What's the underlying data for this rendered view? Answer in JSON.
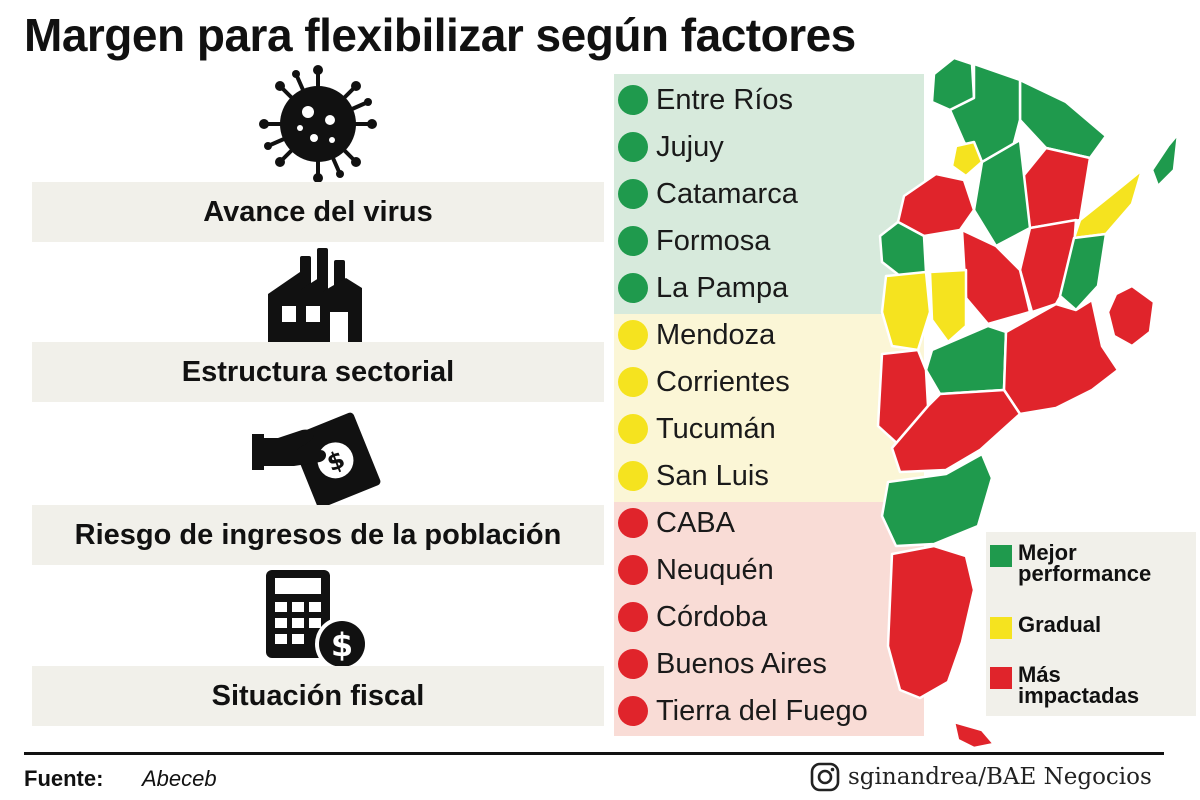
{
  "title": "Margen para flexibilizar según factores",
  "factors": [
    {
      "label": "Avance del virus",
      "icon": "virus-icon"
    },
    {
      "label": "Estructura sectorial",
      "icon": "factory-icon"
    },
    {
      "label": "Riesgo de ingresos de la población",
      "icon": "hand-money-icon"
    },
    {
      "label": "Situación fiscal",
      "icon": "calculator-dollar-icon"
    }
  ],
  "groups": [
    {
      "key": "green",
      "color": "#1f9a4d",
      "bg": "#d7eadc",
      "provinces": [
        "Entre Ríos",
        "Jujuy",
        "Catamarca",
        "Formosa",
        "La Pampa"
      ]
    },
    {
      "key": "yellow",
      "color": "#f5e31f",
      "bg": "#fbf6d6",
      "provinces": [
        "Mendoza",
        "Corrientes",
        "Tucumán",
        "San Luis"
      ]
    },
    {
      "key": "red",
      "color": "#e0242b",
      "bg": "#f9dcd6",
      "provinces": [
        "CABA",
        "Neuquén",
        "Córdoba",
        "Buenos Aires",
        "Tierra del Fuego"
      ]
    }
  ],
  "legend": [
    {
      "label": "Mejor performance",
      "color": "#1f9a4d"
    },
    {
      "label": "Gradual",
      "color": "#f5e31f"
    },
    {
      "label": "Más impactadas",
      "color": "#e0242b"
    }
  ],
  "source": {
    "label": "Fuente:",
    "value": "Abeceb"
  },
  "credit": {
    "text": "sginandrea/BAE Negocios",
    "icon": "instagram-icon"
  }
}
